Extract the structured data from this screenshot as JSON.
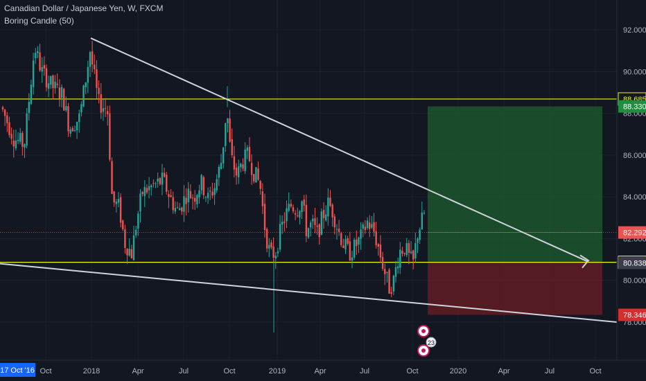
{
  "header": {
    "title": "Canadian Dollar / Japanese Yen, W, FXCM",
    "indicator": "Boring Candle (50)"
  },
  "chart_data": {
    "type": "candlestick",
    "y_ticks": [
      "78.000",
      "80.000",
      "82.000",
      "84.000",
      "86.000",
      "88.000",
      "90.000",
      "92.000"
    ],
    "ylim": [
      76.5,
      93
    ],
    "x_ticks": [
      "Oct",
      "2018",
      "Apr",
      "Jul",
      "Oct",
      "2019",
      "Apr",
      "Jul",
      "Oct",
      "2020",
      "Apr",
      "Jul",
      "Oct"
    ],
    "crosshair_date": "17 Oct '16",
    "horizontal_levels": [
      {
        "value": 88.685,
        "label": "88.685"
      },
      {
        "value": 80.865,
        "label": "80.865"
      }
    ],
    "price_labels": [
      {
        "value": 88.33,
        "label": "88.330",
        "color": "#1e8f3e"
      },
      {
        "value": 82.292,
        "label": "82.292",
        "color": "#ef5350"
      },
      {
        "value": 80.838,
        "label": "80.838",
        "color": "#3a3e4a"
      },
      {
        "value": 78.346,
        "label": "78.346",
        "color": "#d32f2f"
      }
    ],
    "position": {
      "entry": 80.865,
      "target": 88.33,
      "stop": 78.346,
      "profit_color": "#1e5e2e",
      "loss_color": "#6b1e24"
    },
    "trendlines": [
      {
        "name": "upper",
        "from": [
          "2017-12-25",
          91.6
        ],
        "to": [
          "2020-10-15",
          80.9
        ]
      },
      {
        "name": "lower",
        "from": [
          "2016-10-01",
          80.8
        ],
        "to": [
          "2020-10-20",
          78.0
        ]
      }
    ],
    "event_badge": "23",
    "candles_note": "weekly CAD/JPY candles Oct 2016 – Oct 2019",
    "colors": {
      "up": "#26a69a",
      "down": "#ef5350",
      "level": "#f5f50a",
      "trendline": "#d1d4dc",
      "background": "#131722"
    }
  }
}
